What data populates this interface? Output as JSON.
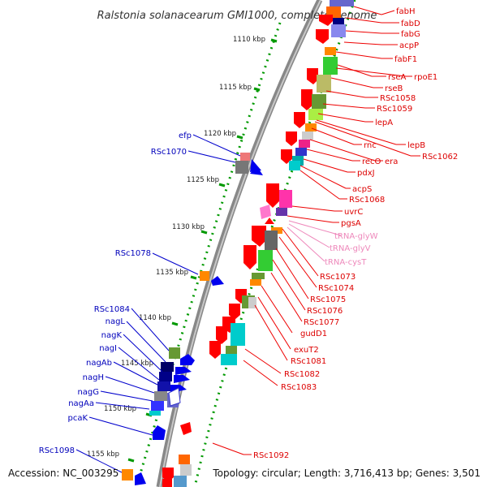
{
  "title": "Ralstonia solanacearum GMI1000, complete genome",
  "footer": {
    "accession": "Accession: NC_003295",
    "summary": "Topology: circular; Length: 3,716,413 bp; Genes: 3,501"
  },
  "kbp_ticks": [
    "1110 kbp",
    "1115 kbp",
    "1120 kbp",
    "1125 kbp",
    "1130 kbp",
    "1135 kbp",
    "1140 kbp",
    "1145 kbp",
    "1150 kbp",
    "1155 kbp"
  ],
  "gene_labels_right": [
    "fabH",
    "fabD",
    "fabG",
    "acpP",
    "fabF1",
    "rseA",
    "rpoE1",
    "rseB",
    "RSc1058",
    "RSc1059",
    "lepA",
    "lepB",
    "rnc",
    "RSc1062",
    "era",
    "recO",
    "pdxJ",
    "acpS",
    "RSc1068",
    "uvrC",
    "pgsA",
    "RSc1073",
    "RSc1074",
    "RSc1075",
    "RSc1076",
    "RSc1077",
    "gudD1",
    "exuT2",
    "RSc1081",
    "RSc1082",
    "RSc1083",
    "RSc1092"
  ],
  "trna_labels": [
    "tRNA-glyW",
    "tRNA-glyV",
    "tRNA-cysT"
  ],
  "gene_labels_left": [
    "efp",
    "RSc1070",
    "RSc1078",
    "RSc1084",
    "nagL",
    "nagK",
    "nagI",
    "nagAb",
    "nagH",
    "nagG",
    "nagAa",
    "pcaK",
    "RSc1098"
  ],
  "colors": {
    "forward_label": "#dd0000",
    "reverse_label": "#0000bb",
    "trna_label": "#ee88bb",
    "forward_gene": "#ff0000",
    "reverse_gene": "#0000ff",
    "backbone": "#888888",
    "tick_dots": "#009900"
  }
}
